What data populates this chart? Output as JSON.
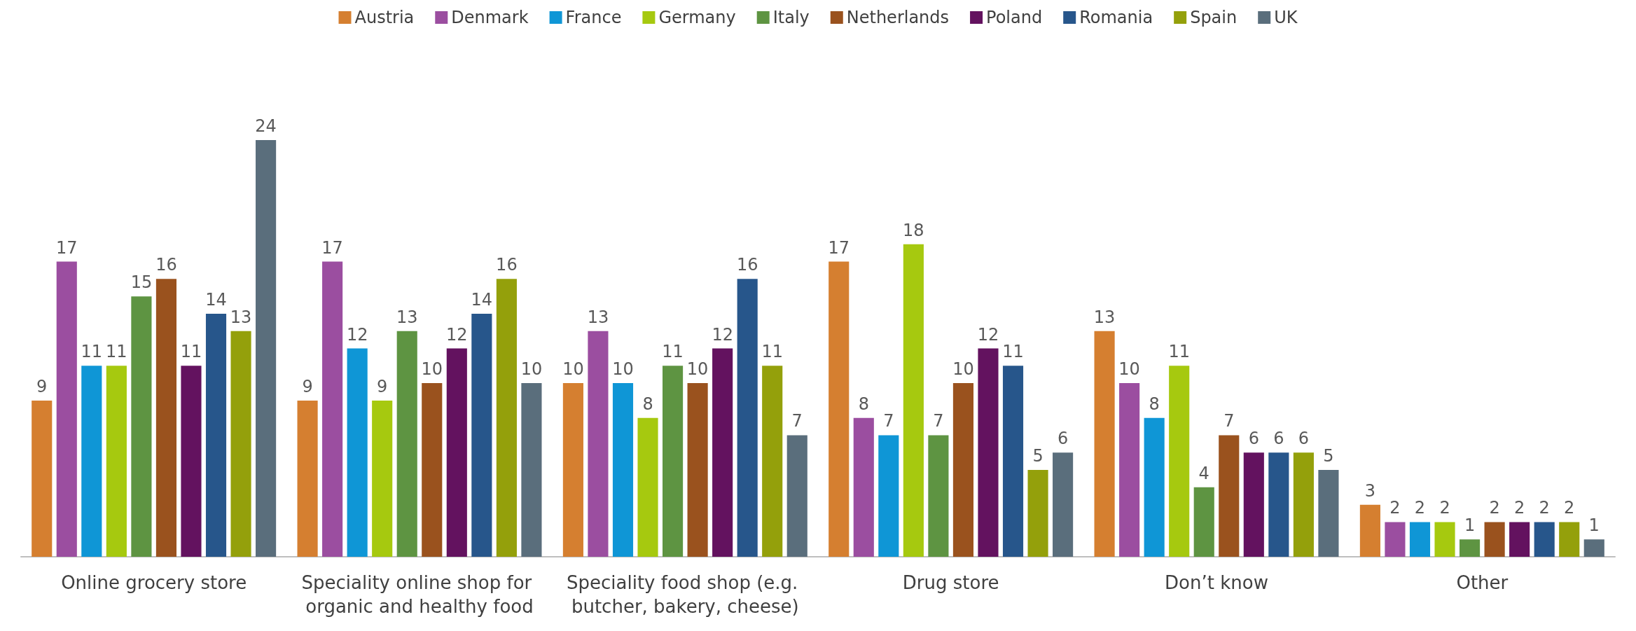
{
  "chart_data": {
    "type": "bar",
    "categories": [
      "Online grocery store",
      "Speciality online shop for organic and healthy food",
      "Speciality food shop (e.g. butcher, bakery, cheese)",
      "Drug store",
      "Don’t know",
      "Other"
    ],
    "series": [
      {
        "name": "Austria",
        "color": "#d57f30",
        "values": [
          9,
          9,
          10,
          17,
          13,
          3
        ]
      },
      {
        "name": "Denmark",
        "color": "#9b4ea0",
        "values": [
          17,
          17,
          13,
          8,
          10,
          2
        ]
      },
      {
        "name": "France",
        "color": "#0f96d6",
        "values": [
          11,
          12,
          10,
          7,
          8,
          2
        ]
      },
      {
        "name": "Germany",
        "color": "#a6c90f",
        "values": [
          11,
          9,
          8,
          18,
          11,
          2
        ]
      },
      {
        "name": "Italy",
        "color": "#5e9442",
        "values": [
          15,
          13,
          11,
          7,
          4,
          1
        ]
      },
      {
        "name": "Netherlands",
        "color": "#9a521e",
        "values": [
          16,
          10,
          10,
          10,
          7,
          2
        ]
      },
      {
        "name": "Poland",
        "color": "#63125f",
        "values": [
          11,
          12,
          12,
          12,
          6,
          2
        ]
      },
      {
        "name": "Romania",
        "color": "#27568b",
        "values": [
          14,
          14,
          16,
          11,
          6,
          2
        ]
      },
      {
        "name": "Spain",
        "color": "#94a00b",
        "values": [
          13,
          16,
          11,
          5,
          6,
          2
        ]
      },
      {
        "name": "UK",
        "color": "#5a6e7c",
        "values": [
          24,
          10,
          7,
          6,
          5,
          1
        ]
      }
    ],
    "data_labels": true,
    "legend": "top"
  }
}
